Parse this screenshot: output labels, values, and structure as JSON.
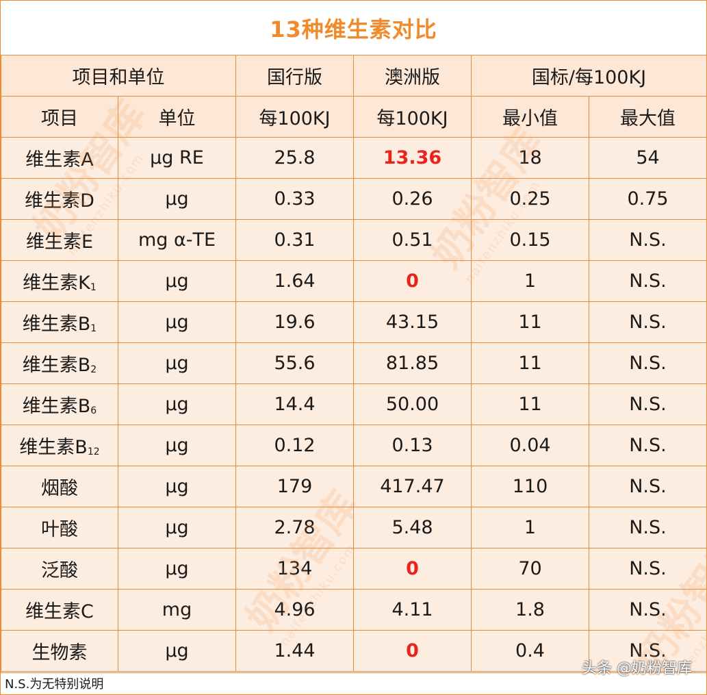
{
  "title": "13种维生素对比",
  "header": {
    "group_item_unit": "项目和单位",
    "guohang": "国行版",
    "aozhou": "澳洲版",
    "guobiao": "国标/每100KJ",
    "item": "项目",
    "unit": "单位",
    "per100_a": "每100KJ",
    "per100_b": "每100KJ",
    "min": "最小值",
    "max": "最大值"
  },
  "rows": [
    {
      "name": "维生素A",
      "sub": "",
      "unit": "μg RE",
      "guohang": "25.8",
      "aozhou": "13.36",
      "aozhou_red": true,
      "min": "18",
      "max": "54"
    },
    {
      "name": "维生素D",
      "sub": "",
      "unit": "μg",
      "guohang": "0.33",
      "aozhou": "0.26",
      "aozhou_red": false,
      "min": "0.25",
      "max": "0.75"
    },
    {
      "name": "维生素E",
      "sub": "",
      "unit": "mg α-TE",
      "guohang": "0.31",
      "aozhou": "0.51",
      "aozhou_red": false,
      "min": "0.15",
      "max": "N.S."
    },
    {
      "name": "维生素K",
      "sub": "1",
      "unit": "μg",
      "guohang": "1.64",
      "aozhou": "0",
      "aozhou_red": true,
      "min": "1",
      "max": "N.S."
    },
    {
      "name": "维生素B",
      "sub": "1",
      "unit": "μg",
      "guohang": "19.6",
      "aozhou": "43.15",
      "aozhou_red": false,
      "min": "11",
      "max": "N.S."
    },
    {
      "name": "维生素B",
      "sub": "2",
      "unit": "μg",
      "guohang": "55.6",
      "aozhou": "81.85",
      "aozhou_red": false,
      "min": "11",
      "max": "N.S."
    },
    {
      "name": "维生素B",
      "sub": "6",
      "unit": "μg",
      "guohang": "14.4",
      "aozhou": "50.00",
      "aozhou_red": false,
      "min": "11",
      "max": "N.S."
    },
    {
      "name": "维生素B",
      "sub": "12",
      "unit": "μg",
      "guohang": "0.12",
      "aozhou": "0.13",
      "aozhou_red": false,
      "min": "0.04",
      "max": "N.S."
    },
    {
      "name": "烟酸",
      "sub": "",
      "unit": "μg",
      "guohang": "179",
      "aozhou": "417.47",
      "aozhou_red": false,
      "min": "110",
      "max": "N.S."
    },
    {
      "name": "叶酸",
      "sub": "",
      "unit": "μg",
      "guohang": "2.78",
      "aozhou": "5.48",
      "aozhou_red": false,
      "min": "1",
      "max": "N.S."
    },
    {
      "name": "泛酸",
      "sub": "",
      "unit": "μg",
      "guohang": "134",
      "aozhou": "0",
      "aozhou_red": true,
      "min": "70",
      "max": "N.S."
    },
    {
      "name": "维生素C",
      "sub": "",
      "unit": "mg",
      "guohang": "4.96",
      "aozhou": "4.11",
      "aozhou_red": false,
      "min": "1.8",
      "max": "N.S."
    },
    {
      "name": "生物素",
      "sub": "",
      "unit": "μg",
      "guohang": "1.44",
      "aozhou": "0",
      "aozhou_red": true,
      "min": "0.4",
      "max": "N.S."
    }
  ],
  "footnote": "N.S.为无特别说明",
  "attribution": "头条 @奶粉智库",
  "watermark": {
    "text": "奶粉智库",
    "url": "naifenzhiku.com"
  },
  "colors": {
    "title": "#f08a2a",
    "border": "#e98b3c",
    "cell_bg": "#fdece0",
    "highlight": "#e8241d"
  }
}
